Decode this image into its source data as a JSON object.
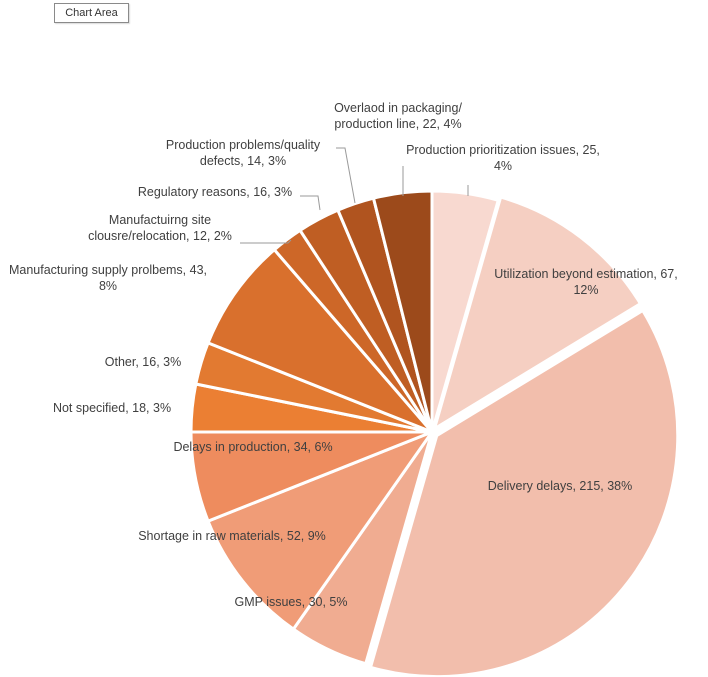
{
  "tooltip": {
    "label": "Chart Area"
  },
  "chart_data": {
    "type": "pie",
    "title": "",
    "start_angle_deg": 0,
    "direction": "clockwise",
    "categories": [
      "Production prioritization issues",
      "Utilization beyond estimation",
      "Delivery delays",
      "GMP issues",
      "Shortage in raw materials",
      "Delays in production",
      "Not specified",
      "Other",
      "Manufacturing supply prolbems",
      "Manufactuirng site clousre/relocation",
      "Regulatory reasons",
      "Production problems/quality defects",
      "Overlaod in packaging/ production line"
    ],
    "values": [
      25,
      67,
      215,
      30,
      52,
      34,
      18,
      16,
      43,
      12,
      16,
      14,
      22
    ],
    "percent_labels": [
      "4%",
      "12%",
      "38%",
      "5%",
      "9%",
      "6%",
      "3%",
      "3%",
      "8%",
      "2%",
      "3%",
      "3%",
      "4%"
    ],
    "colors": [
      "#F8D9D0",
      "#F5CFC2",
      "#F2BEAC",
      "#F0AC91",
      "#F09C77",
      "#EE8C5E",
      "#EB7F33",
      "#E27A31",
      "#D9702D",
      "#CD6728",
      "#BF5E23",
      "#B0541F",
      "#9C4A1B"
    ],
    "labels": [
      {
        "lines": [
          "Production prioritization issues, 25,",
          "4%"
        ]
      },
      {
        "lines": [
          "Utilization beyond estimation, 67,",
          "12%"
        ]
      },
      {
        "lines": [
          "Delivery delays, 215, 38%"
        ]
      },
      {
        "lines": [
          "GMP issues, 30, 5%"
        ]
      },
      {
        "lines": [
          "Shortage in raw materials, 52, 9%"
        ]
      },
      {
        "lines": [
          "Delays in production, 34, 6%"
        ]
      },
      {
        "lines": [
          "Not specified, 18, 3%"
        ]
      },
      {
        "lines": [
          "Other, 16, 3%"
        ]
      },
      {
        "lines": [
          "Manufacturing supply prolbems, 43,",
          "8%"
        ]
      },
      {
        "lines": [
          "Manufactuirng site",
          "clousre/relocation, 12, 2%"
        ]
      },
      {
        "lines": [
          "Regulatory reasons, 16, 3%"
        ]
      },
      {
        "lines": [
          "Production problems/quality",
          "defects, 14, 3%"
        ]
      },
      {
        "lines": [
          "Overlaod in packaging/",
          "production line, 22, 4%"
        ]
      }
    ]
  }
}
